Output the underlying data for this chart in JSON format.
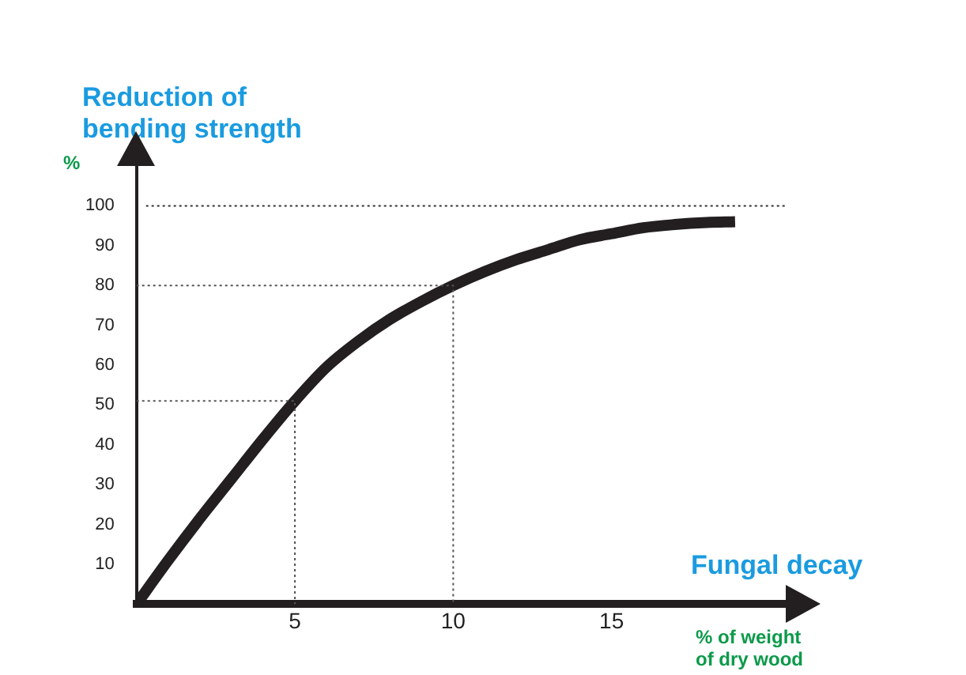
{
  "chart_data": {
    "type": "line",
    "xlabel": "Fungal decay",
    "ylabel": "Reduction of bending strength",
    "annotations": [
      "%",
      "% of weight\nof dry wood"
    ],
    "xlim": [
      0,
      20.5
    ],
    "ylim": [
      0,
      110
    ],
    "xticks": [
      5,
      10,
      15
    ],
    "yticks": [
      10,
      20,
      30,
      40,
      50,
      60,
      70,
      80,
      90,
      100
    ],
    "grid": false,
    "legend": false,
    "marker": "none",
    "ref_lines": [
      {
        "axis": "y",
        "value": 100,
        "color": "#333333",
        "line_style": "dotted"
      }
    ],
    "series": [
      {
        "color": "#231f20",
        "line_style": "solid",
        "x": [
          0,
          1,
          2,
          3,
          4,
          5,
          6,
          7,
          8,
          9,
          10,
          11,
          12,
          13,
          14,
          15,
          16,
          17,
          18,
          18.9
        ],
        "values": [
          0,
          11,
          21.5,
          31.5,
          41.5,
          51,
          59.5,
          66,
          71.5,
          76,
          80,
          83.5,
          86.5,
          89,
          91.5,
          93,
          94.5,
          95.3,
          95.8,
          96
        ]
      },
      {
        "color": "#555555",
        "line_style": "dotted",
        "x": [
          0,
          10,
          10
        ],
        "values": [
          80,
          80,
          0
        ]
      },
      {
        "color": "#555555",
        "line_style": "dotted",
        "x": [
          0,
          5,
          5
        ],
        "values": [
          51,
          51,
          0
        ]
      }
    ]
  }
}
